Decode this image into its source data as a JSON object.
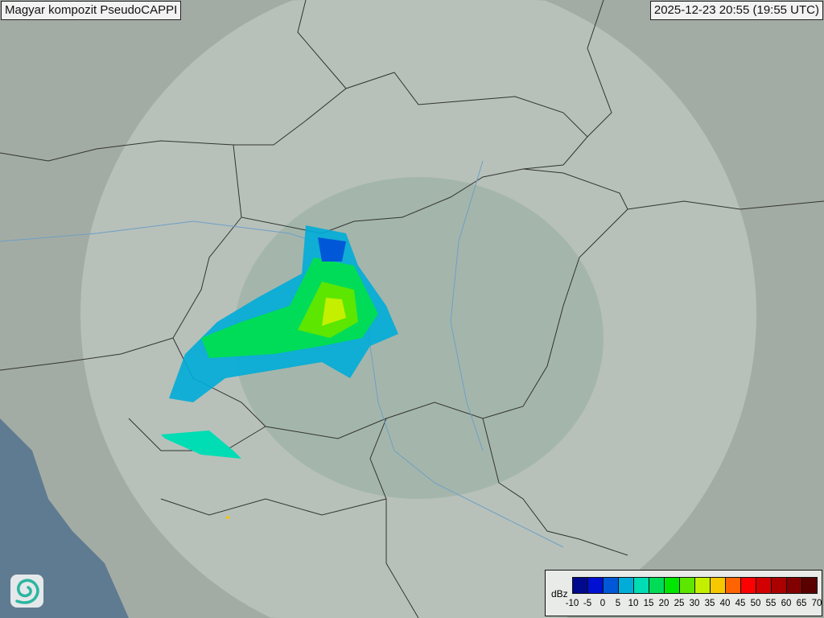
{
  "header": {
    "title": "Magyar kompozit  PseudoCAPPI",
    "timestamp": "2025-12-23 20:55 (19:55 UTC)"
  },
  "legend": {
    "unit": "dBz",
    "ticks": [
      "-10",
      "-5",
      "0",
      "5",
      "10",
      "15",
      "20",
      "25",
      "30",
      "35",
      "40",
      "45",
      "50",
      "55",
      "60",
      "65",
      "70"
    ],
    "colors": [
      "#000a8c",
      "#0010d2",
      "#0058d8",
      "#00acd8",
      "#00dcb4",
      "#00dc58",
      "#00e600",
      "#5ce600",
      "#c4f000",
      "#f5c800",
      "#ff6400",
      "#ff0000",
      "#d20000",
      "#aa0000",
      "#820000",
      "#5a0000"
    ]
  },
  "logo": {
    "icon": "swirl-logo-icon"
  }
}
